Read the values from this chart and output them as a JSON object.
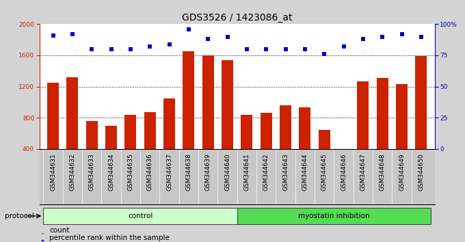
{
  "title": "GDS3526 / 1423086_at",
  "samples": [
    "GSM344631",
    "GSM344632",
    "GSM344633",
    "GSM344634",
    "GSM344635",
    "GSM344636",
    "GSM344637",
    "GSM344638",
    "GSM344639",
    "GSM344640",
    "GSM344641",
    "GSM344642",
    "GSM344643",
    "GSM344644",
    "GSM344645",
    "GSM344646",
    "GSM344647",
    "GSM344648",
    "GSM344649",
    "GSM344650"
  ],
  "bar_values": [
    1250,
    1320,
    760,
    700,
    840,
    870,
    1050,
    1650,
    1600,
    1540,
    840,
    860,
    960,
    930,
    640,
    400,
    1270,
    1310,
    1230,
    1590
  ],
  "dot_values": [
    91,
    92,
    80,
    80,
    80,
    82,
    84,
    96,
    88,
    90,
    80,
    80,
    80,
    80,
    76,
    82,
    88,
    90,
    92,
    90
  ],
  "bar_color": "#cc2200",
  "dot_color": "#0000cc",
  "ylim_left": [
    400,
    2000
  ],
  "ylim_right": [
    0,
    100
  ],
  "yticks_left": [
    400,
    800,
    1200,
    1600,
    2000
  ],
  "yticks_right": [
    0,
    25,
    50,
    75,
    100
  ],
  "ytick_labels_right": [
    "0",
    "25",
    "50",
    "75",
    "100%"
  ],
  "grid_values": [
    800,
    1200,
    1600
  ],
  "control_count": 10,
  "control_label": "control",
  "treatment_label": "myostatin inhibition",
  "protocol_label": "protocol",
  "legend_count": "count",
  "legend_percentile": "percentile rank within the sample",
  "bg_color": "#d4d4d4",
  "plot_bg": "#ffffff",
  "xticklabel_bg": "#c8c8c8",
  "control_bg": "#ccffcc",
  "treatment_bg": "#55dd55",
  "title_fontsize": 10,
  "tick_fontsize": 6.5,
  "label_fontsize": 7.5
}
